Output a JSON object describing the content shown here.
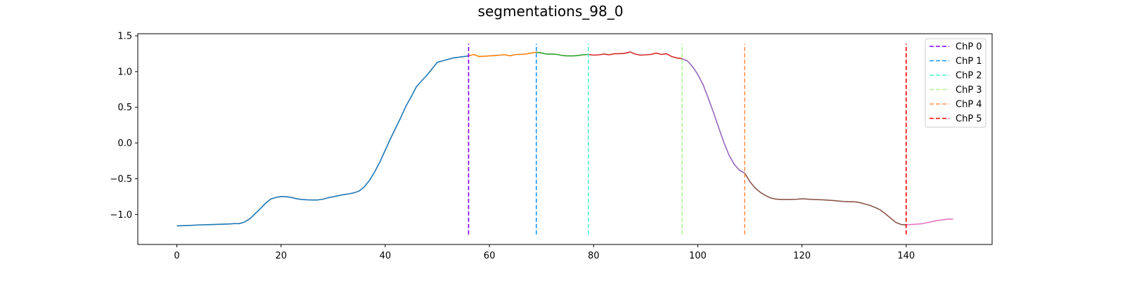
{
  "chart_data": {
    "type": "line",
    "title": "segmentations_98_0",
    "xlabel": "",
    "ylabel": "",
    "xlim": [
      -7.5,
      156.5
    ],
    "ylim": [
      -1.42,
      1.53
    ],
    "xticks": [
      0,
      20,
      40,
      60,
      80,
      100,
      120,
      140
    ],
    "yticks": [
      -1.0,
      -0.5,
      0.0,
      0.5,
      1.0,
      1.5
    ],
    "ytick_labels": [
      "−1.0",
      "−0.5",
      "0.0",
      "0.5",
      "1.0",
      "1.5"
    ],
    "grid": false,
    "legend_position": "top-right",
    "segments": [
      {
        "color": "#1f77b4",
        "x": [
          0,
          2,
          4,
          6,
          8,
          10,
          11,
          12,
          13,
          14,
          15,
          16,
          17,
          18,
          19,
          20,
          21,
          22,
          23,
          24,
          25,
          26,
          27,
          28,
          29,
          30,
          31,
          32,
          33,
          34,
          35,
          36,
          37,
          38,
          39,
          40,
          41,
          42,
          43,
          44,
          45,
          46,
          47,
          48,
          49,
          50,
          51,
          52,
          53,
          54,
          55,
          56
        ],
        "y": [
          -1.16,
          -1.155,
          -1.147,
          -1.143,
          -1.138,
          -1.133,
          -1.128,
          -1.128,
          -1.105,
          -1.06,
          -0.99,
          -0.92,
          -0.845,
          -0.785,
          -0.762,
          -0.748,
          -0.752,
          -0.762,
          -0.78,
          -0.79,
          -0.795,
          -0.797,
          -0.797,
          -0.787,
          -0.767,
          -0.752,
          -0.737,
          -0.722,
          -0.712,
          -0.697,
          -0.672,
          -0.612,
          -0.52,
          -0.4,
          -0.26,
          -0.1,
          0.06,
          0.21,
          0.36,
          0.52,
          0.65,
          0.79,
          0.87,
          0.95,
          1.04,
          1.13,
          1.15,
          1.17,
          1.19,
          1.2,
          1.21,
          1.22
        ]
      },
      {
        "color": "#ff7f0e",
        "x": [
          56,
          57,
          58,
          59,
          60,
          61,
          62,
          63,
          64,
          65,
          66,
          67,
          68,
          69
        ],
        "y": [
          1.22,
          1.24,
          1.21,
          1.215,
          1.22,
          1.225,
          1.23,
          1.235,
          1.22,
          1.24,
          1.24,
          1.245,
          1.26,
          1.27
        ]
      },
      {
        "color": "#2ca02c",
        "x": [
          69,
          70,
          71,
          72,
          73,
          74,
          75,
          76,
          77,
          78,
          79
        ],
        "y": [
          1.27,
          1.26,
          1.245,
          1.245,
          1.24,
          1.225,
          1.22,
          1.22,
          1.225,
          1.235,
          1.24
        ]
      },
      {
        "color": "#d62728",
        "x": [
          79,
          80,
          81,
          82,
          83,
          84,
          85,
          86,
          87,
          88,
          89,
          90,
          91,
          92,
          93,
          94,
          95,
          96,
          97
        ],
        "y": [
          1.24,
          1.23,
          1.235,
          1.245,
          1.235,
          1.25,
          1.25,
          1.255,
          1.275,
          1.245,
          1.23,
          1.235,
          1.24,
          1.26,
          1.24,
          1.25,
          1.21,
          1.19,
          1.18
        ]
      },
      {
        "color": "#9467bd",
        "x": [
          97,
          98,
          99,
          100,
          101,
          102,
          103,
          104,
          105,
          106,
          107,
          108,
          109
        ],
        "y": [
          1.18,
          1.15,
          1.07,
          0.96,
          0.82,
          0.63,
          0.43,
          0.22,
          0.01,
          -0.17,
          -0.3,
          -0.38,
          -0.42
        ]
      },
      {
        "color": "#8c564b",
        "x": [
          109,
          110,
          111,
          112,
          113,
          114,
          115,
          116,
          117,
          118,
          119,
          120,
          121,
          122,
          124,
          126,
          127,
          128,
          129,
          130,
          131,
          132,
          133,
          134,
          135,
          136,
          137,
          138,
          139,
          140
        ],
        "y": [
          -0.42,
          -0.54,
          -0.63,
          -0.69,
          -0.735,
          -0.77,
          -0.785,
          -0.79,
          -0.79,
          -0.79,
          -0.787,
          -0.78,
          -0.785,
          -0.79,
          -0.795,
          -0.805,
          -0.812,
          -0.818,
          -0.822,
          -0.822,
          -0.832,
          -0.852,
          -0.872,
          -0.9,
          -0.935,
          -0.99,
          -1.05,
          -1.11,
          -1.14,
          -1.145
        ]
      },
      {
        "color": "#e377c2",
        "x": [
          140,
          141,
          142,
          143,
          144,
          145,
          146,
          147,
          148,
          149
        ],
        "y": [
          -1.145,
          -1.14,
          -1.135,
          -1.13,
          -1.115,
          -1.1,
          -1.085,
          -1.075,
          -1.065,
          -1.065
        ]
      }
    ],
    "changepoints": [
      {
        "name": "ChP 0",
        "x": 56,
        "color": "#7f00ff"
      },
      {
        "name": "ChP 1",
        "x": 69,
        "color": "#1996f3"
      },
      {
        "name": "ChP 2",
        "x": 79,
        "color": "#4cf2ce"
      },
      {
        "name": "ChP 3",
        "x": 97,
        "color": "#b2f396"
      },
      {
        "name": "ChP 4",
        "x": 109,
        "color": "#ff964f"
      },
      {
        "name": "ChP 5",
        "x": 140,
        "color": "#ff0000"
      }
    ],
    "changepoint_yrange": [
      -1.28,
      1.39
    ]
  }
}
